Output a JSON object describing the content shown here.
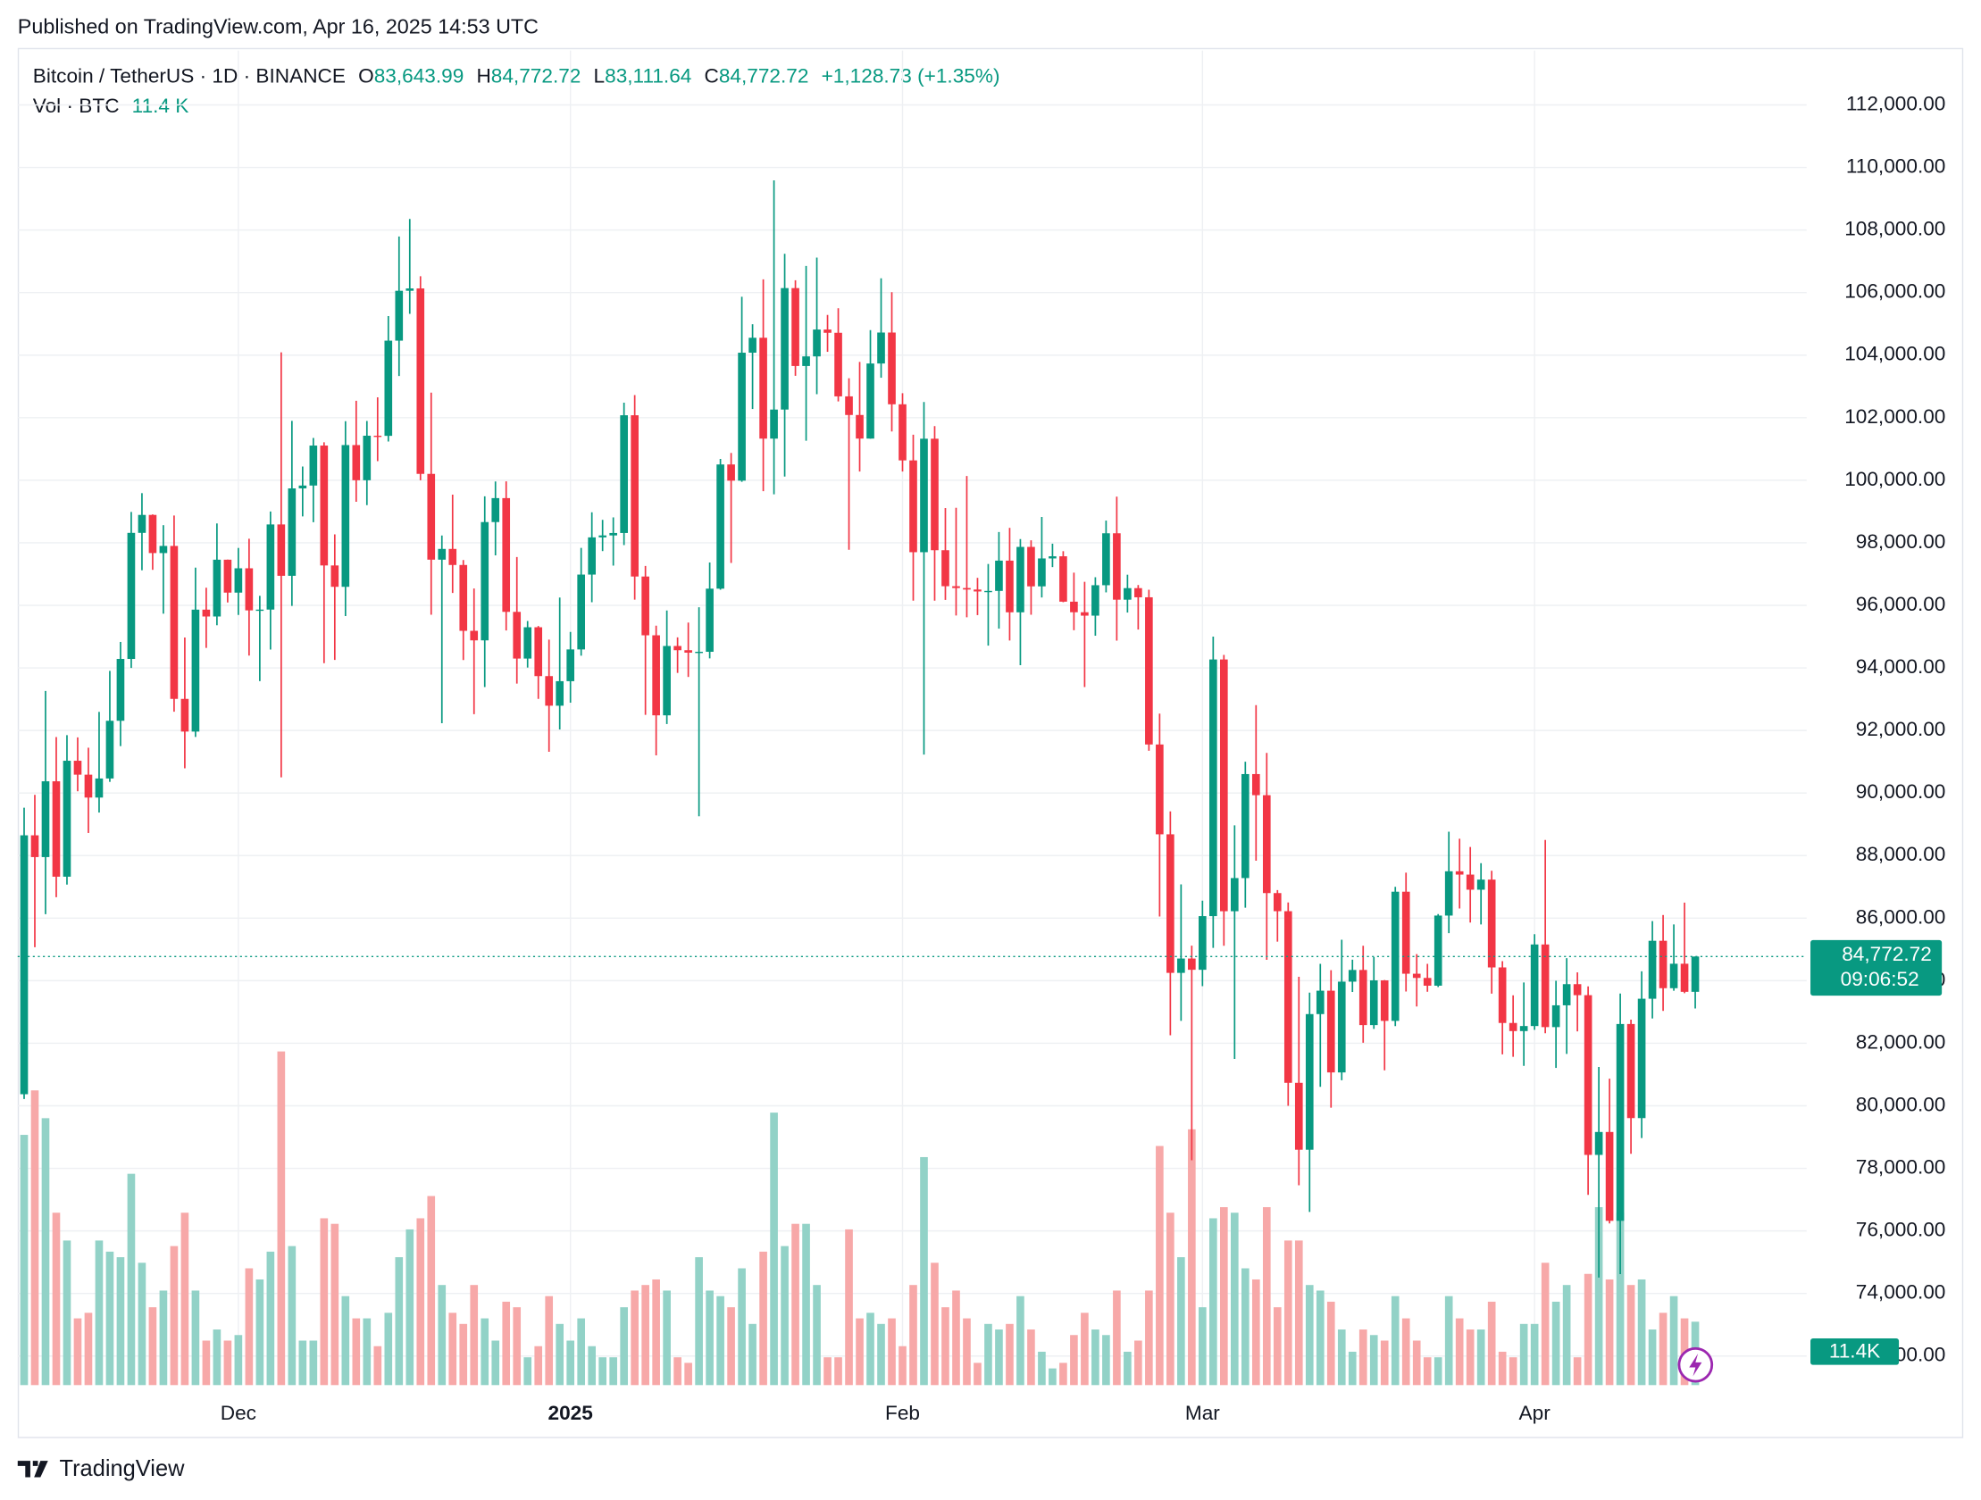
{
  "chart_data": {
    "type": "candlestick",
    "published": "Published on TradingView.com, Apr 16, 2025 14:53 UTC",
    "symbol": "Bitcoin / TetherUS · 1D · BINANCE",
    "legend": {
      "o": "O",
      "open": "83,643.99",
      "h": "H",
      "high": "84,772.72",
      "l": "L",
      "low": "83,111.64",
      "c": "C",
      "close": "84,772.72",
      "change": "+1,128.73 (+1.35%)",
      "vol_title": "Vol · BTC",
      "volume": "11.4 K"
    },
    "last_price_label": "84,772.72",
    "countdown": "09:06:52",
    "volume_badge": "11.4K",
    "brand": "TradingView",
    "up_color": "#089981",
    "down_color": "#f23645",
    "up_volume_color": "#92d2c7",
    "down_volume_color": "#f7a8a8",
    "grid": true,
    "xlim": [
      -0.6,
      166.4
    ],
    "xticks": [
      {
        "value": 20,
        "label": "Dec"
      },
      {
        "value": 51,
        "label": "2025"
      },
      {
        "value": 82,
        "label": "Feb"
      },
      {
        "value": 110,
        "label": "Mar"
      },
      {
        "value": 141,
        "label": "Apr"
      }
    ],
    "ylim": [
      71070,
      113740
    ],
    "yticks": [
      {
        "value": 72000,
        "label": "72,000.00"
      },
      {
        "value": 74000,
        "label": "74,000.00"
      },
      {
        "value": 76000,
        "label": "76,000.00"
      },
      {
        "value": 78000,
        "label": "78,000.00"
      },
      {
        "value": 80000,
        "label": "80,000.00"
      },
      {
        "value": 82000,
        "label": "82,000.00"
      },
      {
        "value": 84000,
        "label": "84,000.00"
      },
      {
        "value": 86000,
        "label": "86,000.00"
      },
      {
        "value": 88000,
        "label": "88,000.00"
      },
      {
        "value": 90000,
        "label": "90,000.00"
      },
      {
        "value": 92000,
        "label": "92,000.00"
      },
      {
        "value": 94000,
        "label": "94,000.00"
      },
      {
        "value": 96000,
        "label": "96,000.00"
      },
      {
        "value": 98000,
        "label": "98,000.00"
      },
      {
        "value": 100000,
        "label": "100,000.00"
      },
      {
        "value": 102000,
        "label": "102,000.00"
      },
      {
        "value": 104000,
        "label": "104,000.00"
      },
      {
        "value": 106000,
        "label": "106,000.00"
      },
      {
        "value": 108000,
        "label": "108,000.00"
      },
      {
        "value": 110000,
        "label": "110,000.00"
      },
      {
        "value": 112000,
        "label": "112,000.00"
      }
    ],
    "volume_ylim": [
      0,
      240
    ],
    "open": [
      80370,
      88648,
      87952,
      90375,
      87325,
      91032,
      90587,
      89855,
      90465,
      92310,
      94287,
      98318,
      98892,
      97672,
      97900,
      93010,
      91965,
      95863,
      95644,
      97460,
      96407,
      97185,
      95840,
      95865,
      98587,
      96945,
      99740,
      99831,
      101109,
      97276,
      96593,
      101125,
      100001,
      101424,
      101420,
      104463,
      106058,
      106133,
      100204,
      97461,
      97805,
      97291,
      95186,
      94881,
      98663,
      99429,
      95792,
      94299,
      95300,
      93738,
      92792,
      93576,
      94591,
      96984,
      98174,
      98236,
      98314,
      102078,
      96922,
      95043,
      92484,
      94701,
      94566,
      94488,
      94516,
      96534,
      100505,
      99987,
      104078,
      104556,
      101331,
      102260,
      106144,
      103653,
      103960,
      104819,
      104714,
      102682,
      102087,
      101332,
      103733,
      104722,
      102429,
      100635,
      97700,
      101328,
      97763,
      96612,
      96554,
      96506,
      96444,
      96462,
      97430,
      95778,
      97869,
      96608,
      97500,
      97569,
      96118,
      95780,
      95671,
      96644,
      98305,
      96181,
      96551,
      96258,
      91552,
      88680,
      84250,
      84708,
      84349,
      86064,
      94270,
      86221,
      87281,
      90606,
      89931,
      86801,
      86222,
      80734,
      78595,
      82932,
      83680,
      81067,
      83969,
      84343,
      82580,
      84010,
      82715,
      86845,
      84223,
      84088,
      83840,
      86082,
      87498,
      87392,
      86909,
      87232,
      84424,
      82648,
      82389,
      82550,
      85158,
      82516,
      83213,
      83889,
      83537,
      78430,
      79163,
      76322,
      82615,
      79607,
      83423,
      85276,
      83760,
      84542,
      83643.99
    ],
    "high": [
      89530,
      89940,
      93265,
      91790,
      91850,
      91779,
      91449,
      92594,
      93905,
      94831,
      98988,
      99588,
      98908,
      98564,
      98871,
      94973,
      97208,
      96564,
      98619,
      97463,
      97836,
      98130,
      96305,
      99000,
      104088,
      101898,
      100439,
      101351,
      101215,
      98270,
      101888,
      102540,
      101895,
      102650,
      105250,
      107793,
      108353,
      106524,
      102800,
      98233,
      99540,
      97448,
      96538,
      99487,
      99960,
      99963,
      97544,
      95500,
      95340,
      94903,
      96250,
      95151,
      97839,
      98976,
      98734,
      98813,
      102482,
      102724,
      97258,
      95350,
      95836,
      94977,
      95450,
      95940,
      97371,
      100681,
      100873,
      105865,
      104988,
      106422,
      109588,
      107240,
      106394,
      106850,
      107120,
      105286,
      105500,
      103260,
      103784,
      104800,
      106457,
      106012,
      102783,
      101456,
      102500,
      101732,
      99111,
      99120,
      100137,
      96880,
      97323,
      98345,
      98478,
      98119,
      98080,
      98826,
      97972,
      97732,
      97046,
      96753,
      96899,
      98711,
      99475,
      96980,
      96650,
      96500,
      92540,
      89414,
      87078,
      85120,
      86558,
      95000,
      94416,
      88967,
      91000,
      92810,
      91283,
      86897,
      86500,
      84123,
      83617,
      84539,
      84336,
      85309,
      84672,
      85117,
      84756,
      84021,
      87000,
      87453,
      84850,
      84539,
      86129,
      88765,
      88539,
      88275,
      87756,
      87515,
      84624,
      83534,
      83943,
      85487,
      88500,
      83998,
      84720,
      84266,
      83817,
      81243,
      80867,
      83588,
      82753,
      84300,
      85905,
      86100,
      85799,
      86496,
      84772.72
    ],
    "low": [
      80216,
      85072,
      86127,
      86668,
      87073,
      90056,
      88722,
      89376,
      90357,
      91500,
      94000,
      97122,
      97136,
      95734,
      92600,
      90791,
      91792,
      94640,
      95364,
      96092,
      95693,
      94395,
      93578,
      94587,
      90500,
      95981,
      98844,
      98657,
      94150,
      94256,
      95658,
      99311,
      99205,
      100609,
      101237,
      103333,
      105321,
      100000,
      95700,
      92232,
      96398,
      94250,
      92520,
      93388,
      97600,
      95199,
      93500,
      94011,
      93010,
      91317,
      92033,
      92888,
      94392,
      96100,
      97735,
      97271,
      97926,
      96181,
      92500,
      91203,
      92206,
      93840,
      93711,
      89256,
      94305,
      96500,
      97356,
      99950,
      102278,
      99651,
      99550,
      100119,
      103339,
      101262,
      102750,
      104106,
      102520,
      97777,
      100279,
      101328,
      103278,
      101560,
      100279,
      96150,
      91231,
      96150,
      96174,
      95676,
      95620,
      95688,
      94713,
      95256,
      94876,
      94088,
      95700,
      96252,
      97223,
      96101,
      95205,
      93388,
      95029,
      96415,
      94871,
      95770,
      95227,
      91349,
      86050,
      82256,
      82716,
      78258,
      83825,
      85050,
      85117,
      81500,
      86334,
      87836,
      84667,
      85248,
      80000,
      77459,
      76606,
      80607,
      79939,
      80818,
      83639,
      82017,
      82457,
      81134,
      82547,
      83655,
      83175,
      83646,
      83795,
      85519,
      86310,
      85860,
      85800,
      83585,
      81644,
      81565,
      81278,
      82429,
      82320,
      81211,
      81659,
      82379,
      77153,
      74508,
      76239,
      74620,
      78464,
      78969,
      82792,
      83034,
      83678,
      83600,
      83111.64
    ],
    "close": [
      88648,
      87952,
      90375,
      87325,
      91032,
      90587,
      89855,
      90465,
      92310,
      94287,
      98318,
      98892,
      97672,
      97900,
      93010,
      91965,
      95863,
      95644,
      97460,
      96407,
      97185,
      95840,
      95865,
      98587,
      96945,
      99740,
      99831,
      101109,
      97276,
      96593,
      101125,
      100001,
      101424,
      101420,
      104463,
      106058,
      106133,
      100204,
      97461,
      97805,
      97291,
      95186,
      94881,
      98663,
      99429,
      95792,
      94299,
      95300,
      93738,
      92792,
      93576,
      94591,
      96984,
      98174,
      98236,
      98314,
      102078,
      96922,
      95043,
      92484,
      94701,
      94566,
      94488,
      94516,
      96534,
      100505,
      99987,
      104078,
      104556,
      101331,
      102260,
      106144,
      103653,
      103960,
      104819,
      104714,
      102682,
      102087,
      101332,
      103733,
      104722,
      102429,
      100635,
      97700,
      101328,
      97763,
      96612,
      96554,
      96506,
      96444,
      96462,
      97430,
      95778,
      97869,
      96608,
      97500,
      97569,
      96118,
      95780,
      95671,
      96644,
      98305,
      96181,
      96551,
      96258,
      91552,
      88680,
      84250,
      84708,
      84349,
      86064,
      94270,
      86221,
      87281,
      90606,
      89931,
      86801,
      86222,
      80734,
      78595,
      82932,
      83680,
      81067,
      83969,
      84343,
      82580,
      84010,
      82715,
      86845,
      84223,
      84088,
      83840,
      86082,
      87498,
      87392,
      86909,
      87232,
      84424,
      82648,
      82389,
      82550,
      85158,
      82516,
      83213,
      83889,
      83537,
      78430,
      79163,
      76322,
      82615,
      79607,
      83423,
      85276,
      83760,
      84542,
      83643.99,
      84772.72
    ],
    "volume": [
      45,
      53,
      48,
      31,
      26,
      12,
      13,
      26,
      24,
      23,
      38,
      22,
      14,
      17,
      25,
      31,
      17,
      8,
      10,
      8,
      9,
      21,
      19,
      24,
      60,
      25,
      8,
      8,
      30,
      29,
      16,
      12,
      12,
      7,
      13,
      23,
      28,
      30,
      34,
      18,
      13,
      11,
      18,
      12,
      8,
      15,
      14,
      5,
      7,
      16,
      11,
      8,
      12,
      7,
      5,
      5,
      14,
      17,
      18,
      19,
      17,
      5,
      4,
      23,
      17,
      16,
      14,
      21,
      11,
      24,
      49,
      25,
      29,
      29,
      18,
      5,
      5,
      28,
      12,
      13,
      11,
      12,
      7,
      18,
      41,
      22,
      14,
      17,
      12,
      4,
      11,
      10,
      11,
      16,
      10,
      6,
      3,
      4,
      9,
      13,
      10,
      9,
      17,
      6,
      8,
      17,
      43,
      31,
      23,
      46,
      14,
      30,
      32,
      31,
      21,
      19,
      32,
      14,
      26,
      26,
      18,
      17,
      15,
      10,
      6,
      10,
      9,
      8,
      16,
      12,
      8,
      5,
      5,
      16,
      12,
      10,
      10,
      15,
      6,
      5,
      11,
      11,
      22,
      15,
      18,
      5,
      20,
      32,
      19,
      31,
      18,
      19,
      10,
      13,
      16,
      12,
      11.4
    ]
  }
}
